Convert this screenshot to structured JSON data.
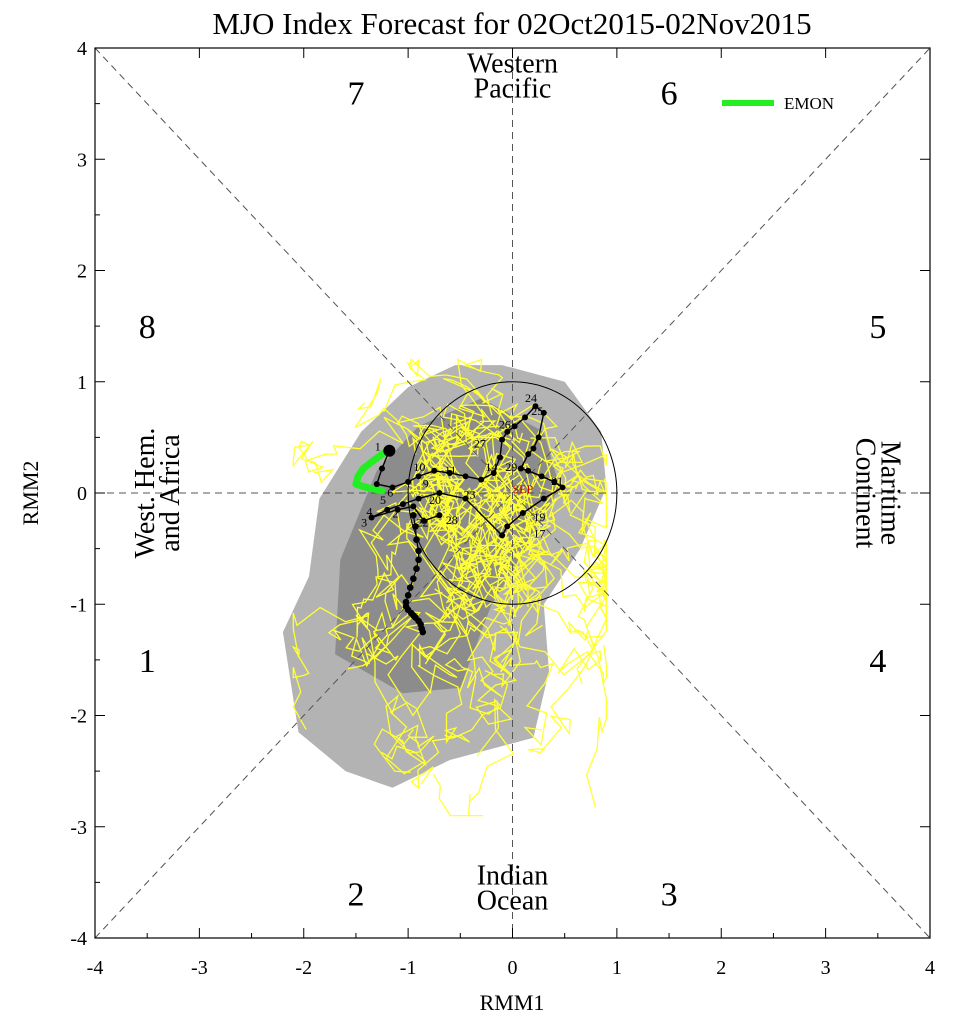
{
  "chart_data": {
    "type": "line",
    "title": "MJO Index Forecast for 02Oct2015-02Nov2015",
    "xlabel": "RMM1",
    "ylabel": "RMM2",
    "xlim": [
      -4,
      4
    ],
    "ylim": [
      -4,
      4
    ],
    "xticks": [
      -4,
      -3,
      -2,
      -1,
      0,
      1,
      2,
      3,
      4
    ],
    "yticks": [
      -4,
      -3,
      -2,
      -1,
      0,
      1,
      2,
      3,
      4
    ],
    "unit_circle_radius": 1,
    "phases": [
      {
        "label": "1",
        "x": -3.5,
        "y": -1.5
      },
      {
        "label": "2",
        "x": -1.5,
        "y": -3.6
      },
      {
        "label": "3",
        "x": 1.5,
        "y": -3.6
      },
      {
        "label": "4",
        "x": 3.5,
        "y": -1.5
      },
      {
        "label": "5",
        "x": 3.5,
        "y": 1.5
      },
      {
        "label": "6",
        "x": 1.5,
        "y": 3.6
      },
      {
        "label": "7",
        "x": -1.5,
        "y": 3.6
      },
      {
        "label": "8",
        "x": -3.5,
        "y": 1.5
      }
    ],
    "regions": [
      {
        "lines": [
          "Western",
          "Pacific"
        ],
        "x": 0,
        "y": 3.75,
        "rotate": 0
      },
      {
        "lines": [
          "Indian",
          "Ocean"
        ],
        "x": 0,
        "y": -3.55,
        "rotate": 0
      },
      {
        "lines": [
          "West. Hem.",
          "and Africa"
        ],
        "x": -3.4,
        "y": 0,
        "rotate": -90
      },
      {
        "lines": [
          "Maritime",
          "Continent"
        ],
        "x": 3.5,
        "y": 0,
        "rotate": 90
      }
    ],
    "legend": {
      "placement": "top-right",
      "entries": [
        {
          "label": "EMON",
          "color": "#22ee22"
        }
      ]
    },
    "colors": {
      "ensemble": "#ffff33",
      "envelope_outer": "#b3b3b3",
      "envelope_inner": "#8c8c8c",
      "observed": "#000000",
      "ensemble_mean": "#22ee22",
      "forecast": "#b01010"
    },
    "envelope_outer": [
      [
        -0.1,
        1.15
      ],
      [
        0.5,
        1.0
      ],
      [
        0.85,
        0.55
      ],
      [
        0.9,
        0.05
      ],
      [
        0.65,
        -0.5
      ],
      [
        0.3,
        -1.0
      ],
      [
        0.35,
        -1.6
      ],
      [
        0.2,
        -2.2
      ],
      [
        -0.6,
        -2.4
      ],
      [
        -1.15,
        -2.65
      ],
      [
        -1.6,
        -2.5
      ],
      [
        -2.05,
        -2.15
      ],
      [
        -2.2,
        -1.25
      ],
      [
        -1.95,
        -0.75
      ],
      [
        -1.85,
        -0.05
      ],
      [
        -1.45,
        0.55
      ],
      [
        -1.0,
        0.95
      ],
      [
        -0.55,
        1.15
      ]
    ],
    "envelope_inner": [
      [
        -0.3,
        0.85
      ],
      [
        0.3,
        0.55
      ],
      [
        0.45,
        0.05
      ],
      [
        0.1,
        -0.55
      ],
      [
        -0.2,
        -1.0
      ],
      [
        -0.5,
        -1.75
      ],
      [
        -1.05,
        -1.8
      ],
      [
        -1.7,
        -1.45
      ],
      [
        -1.65,
        -0.6
      ],
      [
        -1.3,
        0.2
      ],
      [
        -0.9,
        0.6
      ]
    ],
    "observed": {
      "x": [
        -1.18,
        -1.25,
        -1.3,
        -1.15,
        -1.0,
        -0.9,
        -0.75,
        -0.6,
        -0.45,
        -0.3,
        -0.18,
        -0.12,
        -0.1,
        -0.05,
        0.02,
        0.12,
        0.22,
        0.3,
        0.25,
        0.2,
        0.15,
        0.08,
        0.15,
        0.28,
        0.4,
        0.48,
        0.3,
        0.1,
        -0.05,
        -0.1,
        -0.45,
        -0.7,
        -0.9,
        -1.05,
        -1.2,
        -1.35,
        -1.1,
        -0.95,
        -0.85,
        -0.7
      ],
      "y": [
        0.38,
        0.22,
        0.08,
        0.05,
        0.1,
        0.15,
        0.2,
        0.18,
        0.15,
        0.12,
        0.18,
        0.32,
        0.48,
        0.55,
        0.6,
        0.68,
        0.78,
        0.72,
        0.5,
        0.4,
        0.35,
        0.22,
        0.2,
        0.15,
        0.1,
        0.05,
        -0.05,
        -0.18,
        -0.3,
        -0.38,
        -0.05,
        0.0,
        -0.05,
        -0.1,
        -0.15,
        -0.22,
        -0.15,
        -0.12,
        -0.25,
        -0.2
      ]
    },
    "observed_labels": [
      {
        "text": "1",
        "x": -1.32,
        "y": 0.38
      },
      {
        "text": "24",
        "x": 0.12,
        "y": 0.82
      },
      {
        "text": "25",
        "x": 0.18,
        "y": 0.7
      },
      {
        "text": "26",
        "x": -0.13,
        "y": 0.58
      },
      {
        "text": "27",
        "x": -0.37,
        "y": 0.41
      },
      {
        "text": "14",
        "x": -0.26,
        "y": 0.2
      },
      {
        "text": "29",
        "x": -0.07,
        "y": 0.2
      },
      {
        "text": "21",
        "x": 0.37,
        "y": 0.07
      },
      {
        "text": "19",
        "x": 0.2,
        "y": -0.25
      },
      {
        "text": "17",
        "x": 0.2,
        "y": -0.4
      },
      {
        "text": "23",
        "x": -0.47,
        "y": -0.05
      },
      {
        "text": "28",
        "x": -0.64,
        "y": -0.28
      },
      {
        "text": "22",
        "x": -0.92,
        "y": -0.3
      },
      {
        "text": "6",
        "x": -1.2,
        "y": -0.03
      },
      {
        "text": "5",
        "x": -1.27,
        "y": -0.1
      },
      {
        "text": "4",
        "x": -1.4,
        "y": -0.2
      },
      {
        "text": "3",
        "x": -1.45,
        "y": -0.3
      },
      {
        "text": "2",
        "x": -1.15,
        "y": -0.22
      },
      {
        "text": "10",
        "x": -0.95,
        "y": 0.2
      },
      {
        "text": "11",
        "x": -0.65,
        "y": 0.17
      },
      {
        "text": "20",
        "x": -0.8,
        "y": -0.1
      },
      {
        "text": "9",
        "x": -0.86,
        "y": 0.05
      }
    ],
    "forecast_label": {
      "text": "SEP",
      "x": 0.0,
      "y": 0.0
    },
    "ensemble_mean": {
      "x": [
        -1.2,
        -1.32,
        -1.43,
        -1.48,
        -1.5,
        -1.4,
        -1.25
      ],
      "y": [
        0.38,
        0.3,
        0.22,
        0.15,
        0.08,
        0.05,
        0.02
      ]
    },
    "forecast_track": {
      "x": [
        -0.95,
        -0.93,
        -0.92,
        -0.9,
        -0.9,
        -0.92,
        -0.95,
        -0.98,
        -1.0,
        -1.02,
        -1.02,
        -1.0,
        -0.97,
        -0.95,
        -0.93,
        -0.9,
        -0.88,
        -0.87,
        -0.86
      ],
      "y": [
        -0.2,
        -0.3,
        -0.42,
        -0.52,
        -0.6,
        -0.68,
        -0.77,
        -0.85,
        -0.92,
        -0.98,
        -1.02,
        -1.05,
        -1.08,
        -1.1,
        -1.12,
        -1.15,
        -1.18,
        -1.22,
        -1.25
      ]
    }
  }
}
